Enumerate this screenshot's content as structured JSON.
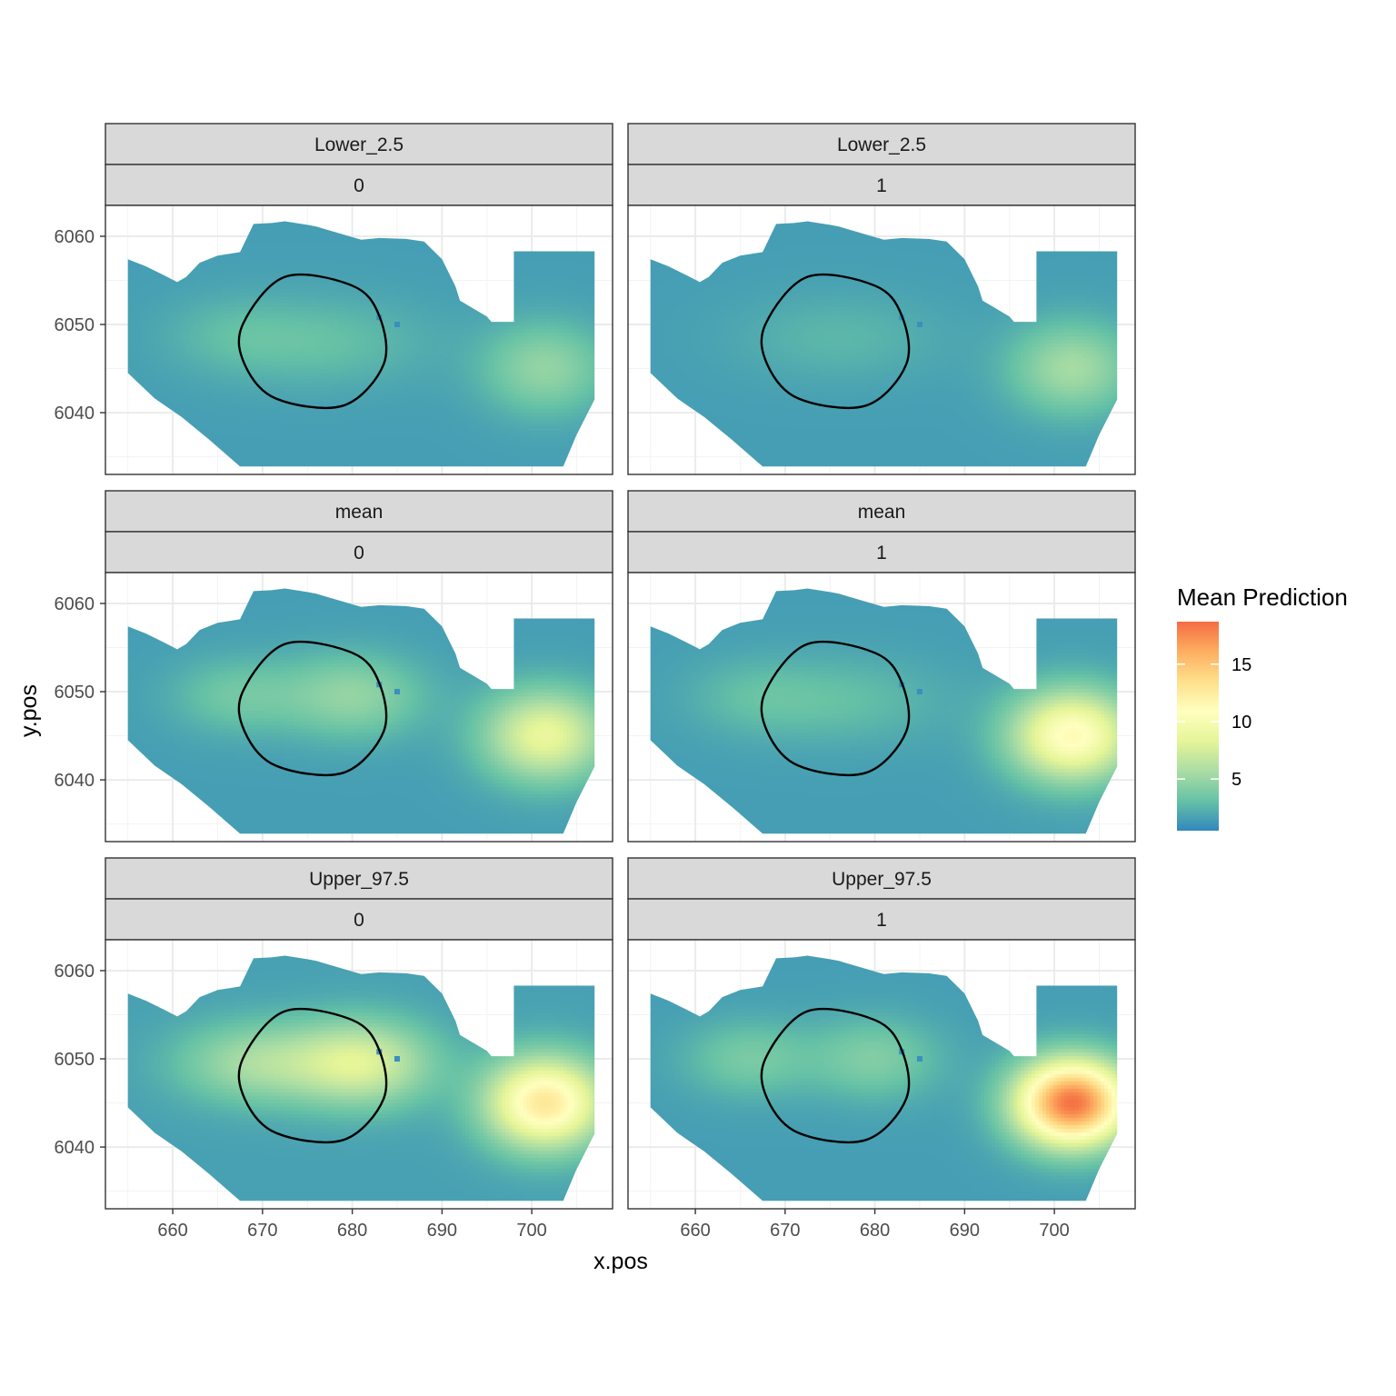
{
  "chart_data": {
    "type": "heatmap",
    "title": "",
    "xlabel": "x.pos",
    "ylabel": "y.pos",
    "xlim": [
      652.5,
      709.0
    ],
    "ylim": [
      6033.0,
      6063.5
    ],
    "x_ticks": [
      660,
      670,
      680,
      690,
      700
    ],
    "y_ticks": [
      6040,
      6050,
      6060
    ],
    "facet_rows": [
      "Lower_2.5",
      "mean",
      "Upper_97.5"
    ],
    "facet_cols": [
      "0",
      "1"
    ],
    "legend": {
      "title": "Mean Prediction",
      "position": "right",
      "range": [
        0.5,
        18.7
      ],
      "ticks": [
        5,
        10,
        15
      ],
      "tick_labels": [
        "5",
        "10",
        "15"
      ],
      "colors": [
        "#3288bd",
        "#66c2a5",
        "#abdda4",
        "#e6f598",
        "#ffffbf",
        "#fee08b",
        "#fdae61",
        "#f46d43"
      ]
    },
    "grid": true,
    "survey_outline": [
      [
        655,
        6057.4
      ],
      [
        657,
        6056.6
      ],
      [
        659,
        6055.6
      ],
      [
        660.5,
        6054.8
      ],
      [
        661.5,
        6055.4
      ],
      [
        663,
        6057
      ],
      [
        665,
        6057.8
      ],
      [
        667.5,
        6058.2
      ],
      [
        669,
        6061.4
      ],
      [
        671,
        6061.5
      ],
      [
        672.5,
        6061.7
      ],
      [
        675,
        6061.3
      ],
      [
        676,
        6061.1
      ],
      [
        677,
        6060.8
      ],
      [
        679,
        6060.2
      ],
      [
        681,
        6059.6
      ],
      [
        683,
        6059.8
      ],
      [
        686,
        6059.7
      ],
      [
        688,
        6059.4
      ],
      [
        690,
        6057.4
      ],
      [
        691.5,
        6054.3
      ],
      [
        692,
        6052.7
      ],
      [
        693.5,
        6051.8
      ],
      [
        695,
        6050.9
      ],
      [
        695.5,
        6050.3
      ],
      [
        698,
        6050.3
      ],
      [
        698,
        6058.3
      ],
      [
        707,
        6058.3
      ],
      [
        707,
        6041.5
      ],
      [
        705,
        6037.5
      ],
      [
        703.5,
        6033.9
      ],
      [
        667.5,
        6033.9
      ],
      [
        664,
        6037
      ],
      [
        661,
        6039.5
      ],
      [
        658,
        6041.6
      ],
      [
        655,
        6044.5
      ]
    ],
    "reference_outline": [
      [
        672.5,
        6055.4
      ],
      [
        680,
        6054.4
      ],
      [
        683,
        6051
      ],
      [
        683.5,
        6045.5
      ],
      [
        679,
        6040.8
      ],
      [
        671.5,
        6041.6
      ],
      [
        668,
        6045.5
      ],
      [
        667.8,
        6050
      ],
      [
        672.5,
        6055.4
      ]
    ],
    "panels": [
      {
        "row": "Lower_2.5",
        "col": "0",
        "base": 1.5,
        "hotspots": [
          {
            "x": 701.5,
            "y": 6045,
            "sx": 4.8,
            "sy": 3.6,
            "amp": 3.3
          },
          {
            "x": 676,
            "y": 6048,
            "sx": 8.5,
            "sy": 3.5,
            "amp": 1.6
          },
          {
            "x": 666,
            "y": 6049,
            "sx": 5,
            "sy": 3,
            "amp": 0.8
          }
        ]
      },
      {
        "row": "Lower_2.5",
        "col": "1",
        "base": 1.5,
        "hotspots": [
          {
            "x": 702,
            "y": 6045,
            "sx": 4.8,
            "sy": 3.6,
            "amp": 4.0
          },
          {
            "x": 676,
            "y": 6048.5,
            "sx": 8,
            "sy": 3.4,
            "amp": 1.1
          }
        ]
      },
      {
        "row": "mean",
        "col": "0",
        "base": 1.5,
        "hotspots": [
          {
            "x": 701.5,
            "y": 6045,
            "sx": 4.8,
            "sy": 3.6,
            "amp": 7.2
          },
          {
            "x": 680,
            "y": 6049.5,
            "sx": 5.5,
            "sy": 3.3,
            "amp": 3.3
          },
          {
            "x": 667,
            "y": 6049.5,
            "sx": 5,
            "sy": 3,
            "amp": 2.0
          }
        ]
      },
      {
        "row": "mean",
        "col": "1",
        "base": 1.5,
        "hotspots": [
          {
            "x": 702,
            "y": 6045,
            "sx": 4.8,
            "sy": 3.6,
            "amp": 9.8
          },
          {
            "x": 676,
            "y": 6049,
            "sx": 8,
            "sy": 3.4,
            "amp": 1.5
          },
          {
            "x": 666,
            "y": 6049.5,
            "sx": 5,
            "sy": 3,
            "amp": 1.0
          }
        ]
      },
      {
        "row": "Upper_97.5",
        "col": "0",
        "base": 1.6,
        "hotspots": [
          {
            "x": 701.5,
            "y": 6045,
            "sx": 4.6,
            "sy": 3.6,
            "amp": 11.2
          },
          {
            "x": 681,
            "y": 6049.5,
            "sx": 5.5,
            "sy": 3.4,
            "amp": 6.2
          },
          {
            "x": 669,
            "y": 6049.5,
            "sx": 6,
            "sy": 3.2,
            "amp": 3.8
          }
        ]
      },
      {
        "row": "Upper_97.5",
        "col": "1",
        "base": 1.5,
        "hotspots": [
          {
            "x": 702,
            "y": 6045,
            "sx": 4.4,
            "sy": 3.4,
            "amp": 17.0
          },
          {
            "x": 680,
            "y": 6050,
            "sx": 5,
            "sy": 3.2,
            "amp": 2.6
          },
          {
            "x": 666,
            "y": 6050,
            "sx": 5,
            "sy": 3,
            "amp": 2.3
          }
        ]
      }
    ]
  }
}
